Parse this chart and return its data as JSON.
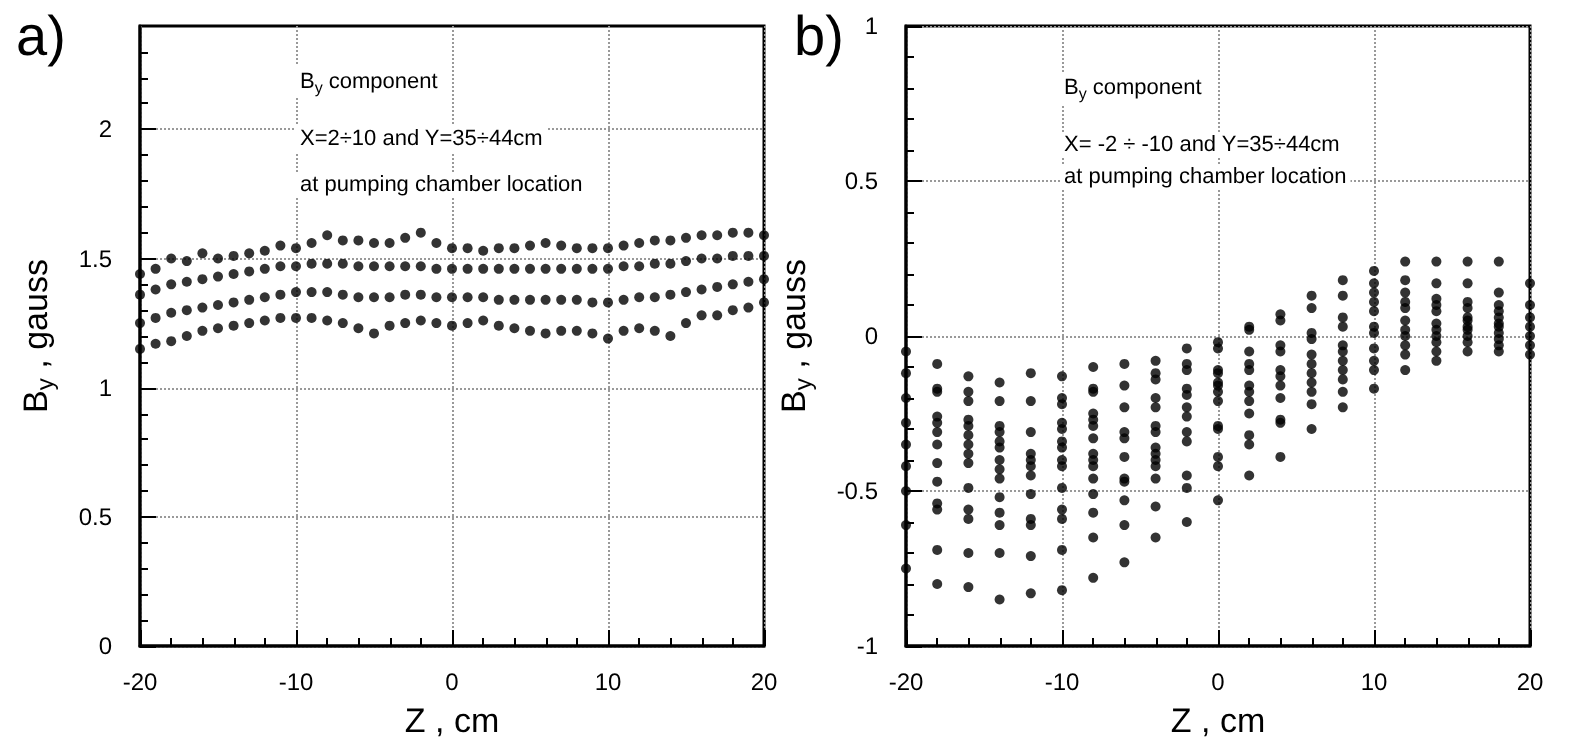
{
  "chart_data": [
    {
      "type": "scatter",
      "xlabel": "Z , cm",
      "ylabel": "B$_{y}$ , gauss",
      "xlim": [
        -20,
        20
      ],
      "xticks": [
        -20,
        -10,
        0,
        10,
        20
      ],
      "ylim": [
        0,
        2.4
      ],
      "yticks": [
        0,
        0.5,
        1,
        1.5,
        2
      ],
      "grid": true,
      "marker": "circle",
      "annotations": [
        "a)",
        "B$_{y}$ component",
        "X=2÷10 and Y=35÷44cm",
        "at pumping chamber location"
      ],
      "series": [
        {
          "color": "#000000",
          "x": [
            -20,
            -20,
            -20,
            -20,
            -19,
            -19,
            -19,
            -19,
            -18,
            -18,
            -18,
            -18,
            -17,
            -17,
            -17,
            -17,
            -16,
            -16,
            -16,
            -16,
            -15,
            -15,
            -15,
            -15,
            -14,
            -14,
            -14,
            -14,
            -13,
            -13,
            -13,
            -13,
            -12,
            -12,
            -12,
            -12,
            -11,
            -11,
            -11,
            -11,
            -10,
            -10,
            -10,
            -10,
            -9,
            -9,
            -9,
            -9,
            -8,
            -8,
            -8,
            -8,
            -7,
            -7,
            -7,
            -7,
            -6,
            -6,
            -6,
            -6,
            -5,
            -5,
            -5,
            -5,
            -4,
            -4,
            -4,
            -4,
            -3,
            -3,
            -3,
            -3,
            -2,
            -2,
            -2,
            -2,
            -1,
            -1,
            -1,
            -1,
            0,
            0,
            0,
            0,
            1,
            1,
            1,
            1,
            2,
            2,
            2,
            2,
            3,
            3,
            3,
            3,
            4,
            4,
            4,
            4,
            5,
            5,
            5,
            5,
            6,
            6,
            6,
            6,
            7,
            7,
            7,
            7,
            8,
            8,
            8,
            8,
            9,
            9,
            9,
            9,
            10,
            10,
            10,
            10,
            11,
            11,
            11,
            11,
            12,
            12,
            12,
            12,
            13,
            13,
            13,
            13,
            14,
            14,
            14,
            14,
            15,
            15,
            15,
            15,
            16,
            16,
            16,
            16,
            17,
            17,
            17,
            17,
            18,
            18,
            18,
            18,
            19,
            19,
            19,
            19,
            20,
            20,
            20,
            20
          ],
          "values": [
            1.44,
            1.36,
            1.25,
            1.15,
            1.46,
            1.38,
            1.27,
            1.17,
            1.5,
            1.4,
            1.29,
            1.18,
            1.49,
            1.41,
            1.3,
            1.2,
            1.52,
            1.42,
            1.31,
            1.22,
            1.5,
            1.43,
            1.32,
            1.23,
            1.51,
            1.44,
            1.33,
            1.24,
            1.52,
            1.45,
            1.34,
            1.25,
            1.53,
            1.46,
            1.35,
            1.26,
            1.55,
            1.47,
            1.36,
            1.27,
            1.54,
            1.47,
            1.37,
            1.27,
            1.56,
            1.48,
            1.37,
            1.27,
            1.59,
            1.48,
            1.37,
            1.26,
            1.57,
            1.48,
            1.36,
            1.25,
            1.57,
            1.47,
            1.35,
            1.23,
            1.56,
            1.47,
            1.35,
            1.21,
            1.56,
            1.47,
            1.35,
            1.24,
            1.58,
            1.47,
            1.36,
            1.25,
            1.6,
            1.47,
            1.36,
            1.26,
            1.56,
            1.46,
            1.35,
            1.25,
            1.54,
            1.46,
            1.35,
            1.24,
            1.54,
            1.46,
            1.35,
            1.25,
            1.53,
            1.46,
            1.35,
            1.26,
            1.54,
            1.46,
            1.34,
            1.24,
            1.54,
            1.46,
            1.34,
            1.23,
            1.55,
            1.46,
            1.34,
            1.22,
            1.56,
            1.46,
            1.34,
            1.21,
            1.55,
            1.46,
            1.34,
            1.22,
            1.54,
            1.46,
            1.34,
            1.22,
            1.54,
            1.46,
            1.33,
            1.21,
            1.54,
            1.46,
            1.33,
            1.19,
            1.55,
            1.47,
            1.34,
            1.22,
            1.56,
            1.47,
            1.35,
            1.23,
            1.57,
            1.48,
            1.35,
            1.22,
            1.57,
            1.48,
            1.36,
            1.2,
            1.58,
            1.49,
            1.37,
            1.25,
            1.59,
            1.5,
            1.38,
            1.28,
            1.59,
            1.5,
            1.39,
            1.28,
            1.6,
            1.51,
            1.4,
            1.3,
            1.6,
            1.51,
            1.41,
            1.31,
            1.59,
            1.51,
            1.42,
            1.33
          ]
        }
      ]
    },
    {
      "type": "scatter",
      "xlabel": "Z , cm",
      "ylabel": "B$_{y}$ , gauss",
      "xlim": [
        -20,
        20
      ],
      "xticks": [
        -20,
        -10,
        0,
        10,
        20
      ],
      "ylim": [
        -1,
        1
      ],
      "yticks": [
        -1,
        -0.5,
        0,
        0.5,
        1
      ],
      "grid": true,
      "marker": "circle",
      "annotations": [
        "b)",
        "B$_{y}$ component",
        "X= -2 ÷ -10 and Y=35÷44cm",
        "at pumping chamber location"
      ],
      "series": [
        {
          "color": "#000000",
          "x": [
            -20,
            -20,
            -20,
            -20,
            -20,
            -20,
            -20,
            -20,
            -20,
            -18,
            -18,
            -18,
            -18,
            -18,
            -18,
            -18,
            -18,
            -18,
            -18,
            -18,
            -18,
            -18,
            -16,
            -16,
            -16,
            -16,
            -16,
            -16,
            -16,
            -16,
            -16,
            -16,
            -16,
            -16,
            -16,
            -16,
            -14,
            -14,
            -14,
            -14,
            -14,
            -14,
            -14,
            -14,
            -14,
            -14,
            -14,
            -14,
            -14,
            -14,
            -12,
            -12,
            -12,
            -12,
            -12,
            -12,
            -12,
            -12,
            -12,
            -12,
            -12,
            -12,
            -10,
            -10,
            -10,
            -10,
            -10,
            -10,
            -10,
            -10,
            -10,
            -10,
            -10,
            -10,
            -10,
            -10,
            -8,
            -8,
            -8,
            -8,
            -8,
            -8,
            -8,
            -8,
            -8,
            -8,
            -8,
            -8,
            -8,
            -8,
            -8,
            -6,
            -6,
            -6,
            -6,
            -6,
            -6,
            -6,
            -6,
            -6,
            -6,
            -6,
            -4,
            -4,
            -4,
            -4,
            -4,
            -4,
            -4,
            -4,
            -4,
            -4,
            -4,
            -4,
            -4,
            -4,
            -2,
            -2,
            -2,
            -2,
            -2,
            -2,
            -2,
            -2,
            -2,
            -2,
            -2,
            -2,
            0,
            0,
            0,
            0,
            0,
            0,
            0,
            0,
            0,
            0,
            0,
            0,
            0,
            2,
            2,
            2,
            2,
            2,
            2,
            2,
            2,
            2,
            2,
            2,
            2,
            4,
            4,
            4,
            4,
            4,
            4,
            4,
            4,
            4,
            4,
            4,
            6,
            6,
            6,
            6,
            6,
            6,
            6,
            6,
            6,
            6,
            6,
            8,
            8,
            8,
            8,
            8,
            8,
            8,
            8,
            8,
            8,
            8,
            10,
            10,
            10,
            10,
            10,
            10,
            10,
            10,
            10,
            10,
            10,
            12,
            12,
            12,
            12,
            12,
            12,
            12,
            12,
            12,
            12,
            12,
            14,
            14,
            14,
            14,
            14,
            14,
            14,
            14,
            14,
            14,
            14,
            16,
            16,
            16,
            16,
            16,
            16,
            16,
            16,
            16,
            16,
            16,
            18,
            18,
            18,
            18,
            18,
            18,
            18,
            18,
            18,
            18,
            18,
            20,
            20,
            20,
            20,
            20,
            20,
            20
          ],
          "values": [
            -0.05,
            -0.12,
            -0.2,
            -0.28,
            -0.35,
            -0.42,
            -0.5,
            -0.61,
            -0.75,
            -0.09,
            -0.17,
            -0.18,
            -0.26,
            -0.28,
            -0.31,
            -0.35,
            -0.41,
            -0.47,
            -0.54,
            -0.56,
            -0.69,
            -0.8,
            -0.13,
            -0.18,
            -0.21,
            -0.27,
            -0.29,
            -0.32,
            -0.35,
            -0.38,
            -0.41,
            -0.49,
            -0.56,
            -0.59,
            -0.7,
            -0.81,
            -0.15,
            -0.21,
            -0.29,
            -0.31,
            -0.34,
            -0.36,
            -0.4,
            -0.43,
            -0.46,
            -0.52,
            -0.57,
            -0.61,
            -0.7,
            -0.85,
            -0.12,
            -0.21,
            -0.31,
            -0.38,
            -0.4,
            -0.42,
            -0.45,
            -0.51,
            -0.59,
            -0.61,
            -0.71,
            -0.83,
            -0.13,
            -0.2,
            -0.22,
            -0.28,
            -0.3,
            -0.34,
            -0.36,
            -0.4,
            -0.42,
            -0.49,
            -0.56,
            -0.59,
            -0.69,
            -0.82,
            -0.1,
            -0.17,
            -0.18,
            -0.25,
            -0.27,
            -0.29,
            -0.33,
            -0.38,
            -0.4,
            -0.42,
            -0.46,
            -0.51,
            -0.57,
            -0.65,
            -0.78,
            -0.09,
            -0.16,
            -0.23,
            -0.31,
            -0.33,
            -0.39,
            -0.46,
            -0.47,
            -0.53,
            -0.61,
            -0.73,
            -0.08,
            -0.12,
            -0.14,
            -0.2,
            -0.23,
            -0.29,
            -0.31,
            -0.36,
            -0.38,
            -0.4,
            -0.42,
            -0.46,
            -0.55,
            -0.65,
            -0.04,
            -0.09,
            -0.11,
            -0.17,
            -0.19,
            -0.23,
            -0.26,
            -0.31,
            -0.34,
            -0.45,
            -0.49,
            -0.6,
            -0.02,
            -0.04,
            -0.11,
            -0.12,
            -0.15,
            -0.16,
            -0.18,
            -0.21,
            -0.29,
            -0.3,
            -0.39,
            -0.42,
            -0.53,
            0.03,
            0.02,
            -0.05,
            -0.09,
            -0.11,
            -0.16,
            -0.18,
            -0.21,
            -0.25,
            -0.32,
            -0.35,
            -0.45,
            0.07,
            0.05,
            -0.03,
            -0.05,
            -0.11,
            -0.13,
            -0.16,
            -0.2,
            -0.27,
            -0.28,
            -0.39,
            0.13,
            0.09,
            0.01,
            -0.01,
            -0.06,
            -0.09,
            -0.12,
            -0.15,
            -0.18,
            -0.22,
            -0.3,
            0.18,
            0.13,
            0.06,
            0.03,
            -0.03,
            -0.05,
            -0.08,
            -0.11,
            -0.14,
            -0.18,
            -0.23,
            0.21,
            0.17,
            0.14,
            0.11,
            0.08,
            0.03,
            0.01,
            -0.04,
            -0.08,
            -0.11,
            -0.17,
            0.24,
            0.18,
            0.14,
            0.11,
            0.09,
            0.05,
            0.02,
            0,
            -0.03,
            -0.06,
            -0.11,
            0.24,
            0.17,
            0.12,
            0.1,
            0.08,
            0.04,
            0.02,
            0,
            -0.02,
            -0.05,
            -0.08,
            0.24,
            0.17,
            0.11,
            0.09,
            0.06,
            0.05,
            0.03,
            0.02,
            0,
            -0.02,
            -0.05,
            0.24,
            0.14,
            0.1,
            0.08,
            0.06,
            0.04,
            0.03,
            0.01,
            -0.01,
            -0.03,
            -0.05,
            0.17,
            0.1,
            0.06,
            0.03,
            0,
            -0.03,
            -0.06
          ]
        }
      ]
    }
  ]
}
